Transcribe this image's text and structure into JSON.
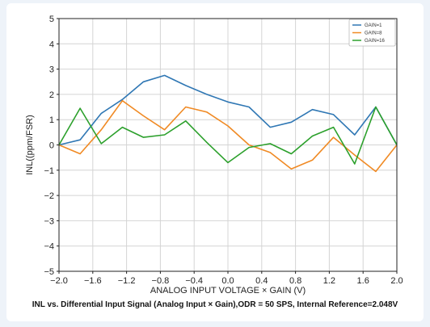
{
  "chart_data": {
    "type": "line",
    "caption": "INL vs. Differential Input Signal (Analog Input × Gain),ODR = 50 SPS, Internal Reference=2.048V",
    "xlabel": "ANALOG INPUT VOLTAGE × GAIN (V)",
    "ylabel": "INL((ppm/FSR)",
    "xlim": [
      -2.0,
      2.0
    ],
    "ylim": [
      -5,
      5
    ],
    "xticks": [
      -2.0,
      -1.6,
      -1.2,
      -0.8,
      -0.4,
      0.0,
      0.4,
      0.8,
      1.2,
      1.6,
      2.0
    ],
    "xtick_labels": [
      "−2.0",
      "−1.6",
      "−1.2",
      "−0.8",
      "−0.4",
      "0.0",
      "0.4",
      "0.8",
      "1.2",
      "1.6",
      "2.0"
    ],
    "yticks": [
      5,
      4,
      3,
      2,
      1,
      0,
      -1,
      -2,
      -3,
      -4,
      -5
    ],
    "ytick_labels": [
      "5",
      "4",
      "3",
      "2",
      "1",
      "0",
      "−1",
      "−2",
      "−3",
      "−4",
      "−5"
    ],
    "grid": true,
    "legend_position": "top-right",
    "x": [
      -2.0,
      -1.75,
      -1.5,
      -1.25,
      -1.0,
      -0.75,
      -0.5,
      -0.25,
      0.0,
      0.25,
      0.5,
      0.75,
      1.0,
      1.25,
      1.5,
      1.75,
      2.0
    ],
    "series": [
      {
        "name": "GAIN=1",
        "color": "#2f77b4",
        "values": [
          0.0,
          0.2,
          1.25,
          1.8,
          2.5,
          2.75,
          2.35,
          2.0,
          1.7,
          1.5,
          0.7,
          0.9,
          1.4,
          1.2,
          0.4,
          1.5,
          0.0
        ]
      },
      {
        "name": "GAIN=8",
        "color": "#f08a24",
        "values": [
          0.0,
          -0.35,
          0.6,
          1.75,
          1.15,
          0.6,
          1.5,
          1.3,
          0.75,
          0.0,
          -0.3,
          -0.95,
          -0.6,
          0.3,
          -0.4,
          -1.05,
          0.0
        ]
      },
      {
        "name": "GAIN=16",
        "color": "#2ca02c",
        "values": [
          0.0,
          1.45,
          0.05,
          0.7,
          0.3,
          0.4,
          0.95,
          0.1,
          -0.7,
          -0.1,
          0.05,
          -0.35,
          0.35,
          0.7,
          -0.75,
          1.5,
          0.0
        ]
      }
    ]
  }
}
